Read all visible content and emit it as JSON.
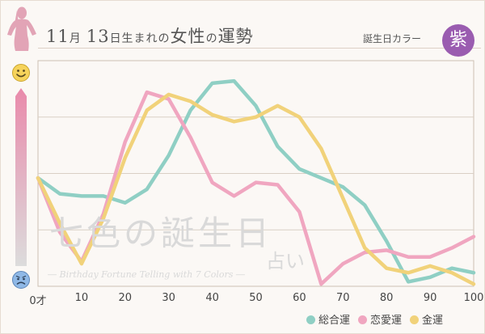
{
  "header": {
    "month": "11",
    "month_unit": "月",
    "day": "13",
    "day_suffix": "日生まれの",
    "subject": "女性",
    "particle": "の",
    "fortune": "運勢",
    "birthday_color_label": "誕生日カラー",
    "birthday_color_name": "紫",
    "birthday_color": "#9a5cb0"
  },
  "gauge": {
    "top_icon": "smiley-face-icon",
    "bottom_icon": "worried-face-icon"
  },
  "watermark": {
    "main": "七色の誕生日",
    "tail": "占い",
    "sub": "― Birthday Fortune Telling with 7 Colors ―"
  },
  "chart_data": {
    "type": "line",
    "x": [
      0,
      5,
      10,
      15,
      20,
      25,
      30,
      35,
      40,
      45,
      50,
      55,
      60,
      65,
      70,
      75,
      80,
      85,
      90,
      95,
      100
    ],
    "xticks": [
      0,
      10,
      20,
      30,
      40,
      50,
      60,
      70,
      80,
      90,
      100
    ],
    "xtick_labels": [
      "0才",
      "10",
      "20",
      "30",
      "40",
      "50",
      "60",
      "70",
      "80",
      "90",
      "100"
    ],
    "xlim": [
      0,
      100
    ],
    "ylim": [
      0,
      100
    ],
    "grid": true,
    "legend_position": "bottom-right",
    "series": [
      {
        "name": "総合運",
        "color": "#8fcfc4",
        "values": [
          48,
          41,
          40,
          40,
          37,
          43,
          58,
          78,
          90,
          91,
          80,
          62,
          52,
          48,
          44,
          36,
          20,
          2,
          4,
          8,
          6
        ]
      },
      {
        "name": "恋愛運",
        "color": "#f0a6c0",
        "values": [
          48,
          24,
          11,
          32,
          64,
          86,
          83,
          66,
          46,
          40,
          46,
          45,
          33,
          1,
          10,
          15,
          16,
          13,
          13,
          17,
          22
        ]
      },
      {
        "name": "金運",
        "color": "#f1d27a",
        "values": [
          48,
          28,
          10,
          30,
          57,
          78,
          85,
          82,
          76,
          73,
          75,
          80,
          75,
          61,
          39,
          17,
          8,
          6,
          9,
          6,
          1
        ]
      }
    ]
  }
}
